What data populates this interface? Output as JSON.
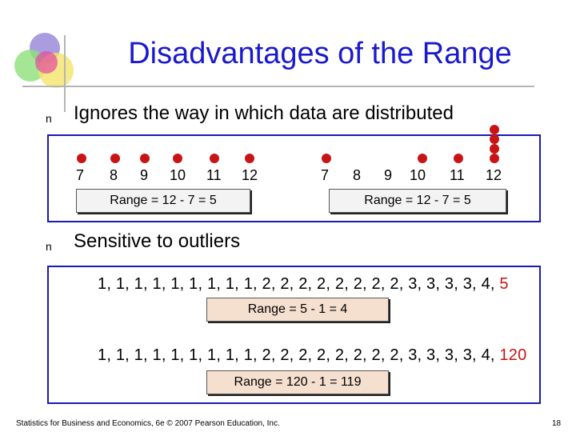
{
  "title": "Disadvantages of the Range",
  "bullets": [
    {
      "mark": "n",
      "text": "Ignores the way in which data are distributed"
    },
    {
      "mark": "n",
      "text": "Sensitive to outliers"
    }
  ],
  "panel1": {
    "left_ticks": [
      "7",
      "8",
      "9",
      "10",
      "11",
      "12"
    ],
    "left_range": "Range = 12 - 7 = 5",
    "right_ticks": [
      "7",
      "8",
      "9",
      "10",
      "11",
      "12"
    ],
    "right_range": "Range = 12 - 7 = 5"
  },
  "panel2": {
    "seq1_main": "1, 1, 1, 1, 1, 1, 1, 1, 1, 2, 2, 2, 2, 2, 2, 2, 2, 3, 3, 3, 3, 4,",
    "seq1_last": "5",
    "range1": "Range = 5 - 1 = 4",
    "seq2_main": "1, 1, 1, 1, 1, 1, 1, 1, 1, 2, 2, 2, 2, 2, 2, 2, 2, 3, 3, 3, 3, 4,",
    "seq2_last": "120",
    "range2": "Range = 120 - 1 = 119"
  },
  "footer": {
    "left": "Statistics for Business and Economics, 6e © 2007 Pearson Education, Inc.",
    "page": "18"
  },
  "colors": {
    "title": "#1a1acc",
    "accent": "#c81414",
    "border": "#1a1ab0"
  }
}
